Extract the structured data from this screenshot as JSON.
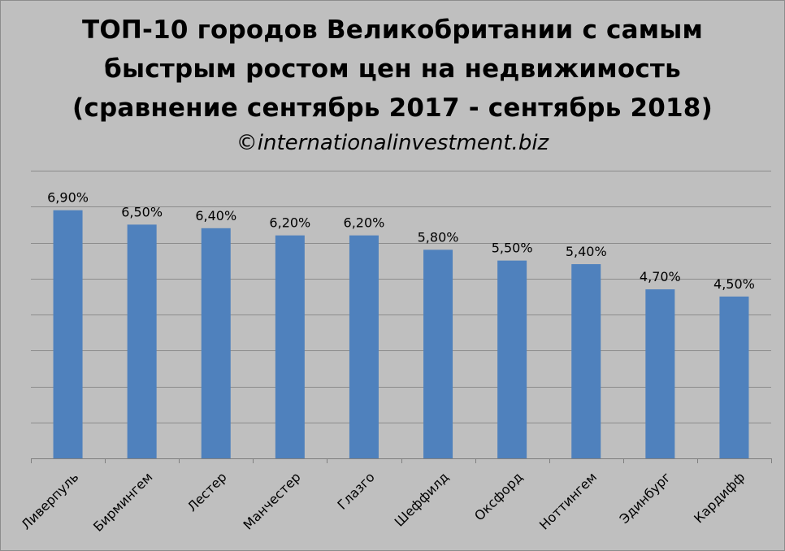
{
  "header": {
    "title_lines": [
      "ТОП-10 городов Великобритании с самым",
      "быстрым ростом цен на недвижимость",
      "(сравнение сентябрь 2017 - сентябрь 2018)"
    ],
    "subtitle": "©internationalinvestment.biz"
  },
  "chart_data": {
    "type": "bar",
    "title": "ТОП-10 городов Великобритании с самым быстрым ростом цен на недвижимость (сравнение сентябрь 2017 - сентябрь 2018)",
    "subtitle": "©internationalinvestment.biz",
    "categories": [
      "Ливерпуль",
      "Бирмингем",
      "Лестер",
      "Манчестер",
      "Глазго",
      "Шеффилд",
      "Оксфорд",
      "Ноттингем",
      "Эдинбург",
      "Кардифф"
    ],
    "values": [
      6.9,
      6.5,
      6.4,
      6.2,
      6.2,
      5.8,
      5.5,
      5.4,
      4.7,
      4.5
    ],
    "value_labels": [
      "6,90%",
      "6,50%",
      "6,40%",
      "6,20%",
      "6,20%",
      "5,80%",
      "5,50%",
      "5,40%",
      "4,70%",
      "4,50%"
    ],
    "unit": "%",
    "ylim": [
      0,
      8
    ],
    "grid": true,
    "legend": "none",
    "bar_color": "#4f81bd"
  }
}
